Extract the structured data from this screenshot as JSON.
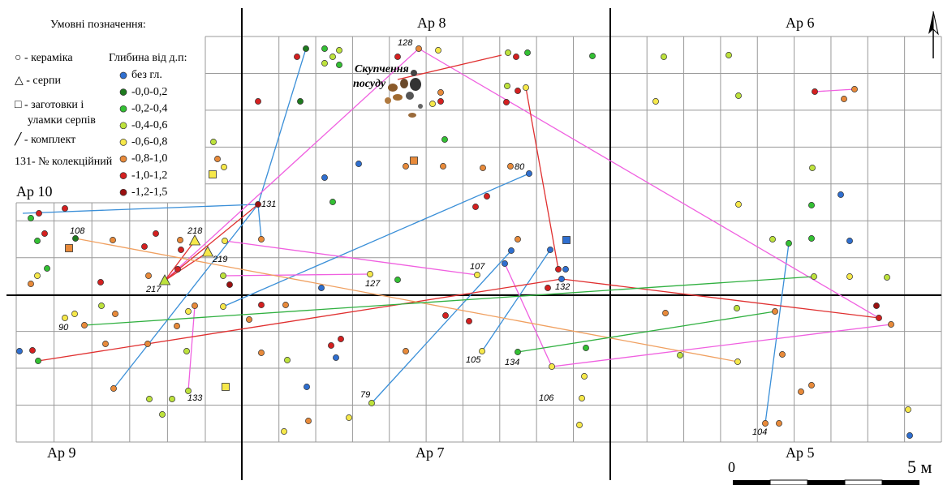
{
  "legend": {
    "title": "Умовні позначення:",
    "items": [
      "○ - кераміка",
      "△ - серпи",
      "□ - заготовки і",
      "уламки серпів",
      "╱ - комплект",
      "131- № колекційний"
    ]
  },
  "depth_legend": {
    "title": "Глибина від д.п:",
    "items": [
      {
        "label": "без гл.",
        "color": "#2f6fd0"
      },
      {
        "label": "-0,0-0,2",
        "color": "#1e7a1e"
      },
      {
        "label": "-0,2-0,4",
        "color": "#33c033"
      },
      {
        "label": "-0,4-0,6",
        "color": "#bde23c"
      },
      {
        "label": "-0,6-0,8",
        "color": "#f6e84a"
      },
      {
        "label": "-0,8-1,0",
        "color": "#e88a3a"
      },
      {
        "label": "-1,0-1,2",
        "color": "#d42020"
      },
      {
        "label": "-1,2-1,5",
        "color": "#9a1010"
      }
    ]
  },
  "areas": [
    "Ар 8",
    "Ар 6",
    "Ар 10",
    "Ар 9",
    "Ар 7",
    "Ар 5"
  ],
  "cluster_label": [
    "Скупчення",
    "посуду"
  ],
  "collection_numbers": [
    "128",
    "80",
    "131",
    "108",
    "218",
    "219",
    "217",
    "127",
    "107",
    "132",
    "90",
    "105",
    "134",
    "106",
    "79",
    "133",
    "104"
  ],
  "scale": {
    "start": "0",
    "end": "5 м"
  }
}
